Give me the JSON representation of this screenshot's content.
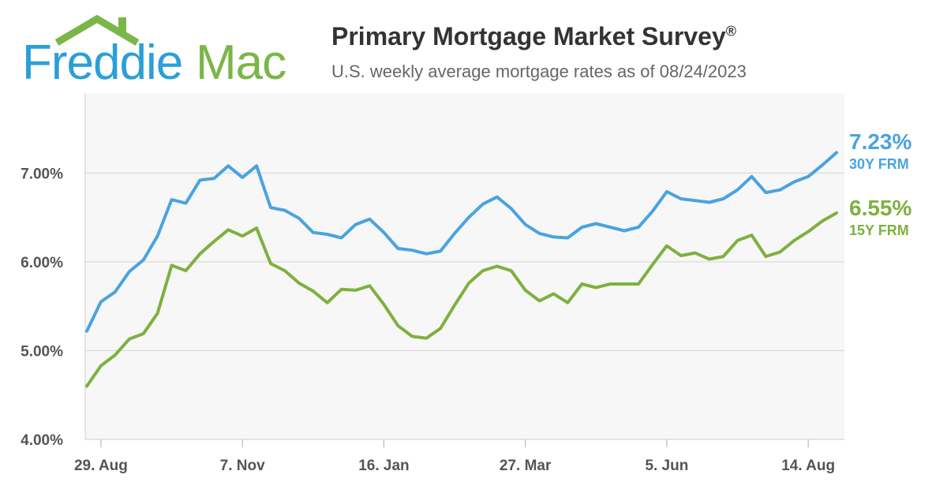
{
  "logo": {
    "word1": "Freddie",
    "word2": "Mac",
    "color1": "#2a9fd8",
    "color2": "#7ab648"
  },
  "header": {
    "title": "Primary Mortgage Market Survey",
    "title_mark": "®",
    "subtitle": "U.S. weekly average mortgage rates as of 08/24/2023"
  },
  "end_labels": {
    "frm30": {
      "value": "7.23%",
      "name": "30Y FRM",
      "color": "#4aa3df"
    },
    "frm15": {
      "value": "6.55%",
      "name": "15Y FRM",
      "color": "#7fb03f"
    }
  },
  "chart_data": {
    "type": "line",
    "title": "",
    "xlabel": "",
    "ylabel": "",
    "ylim": [
      4.0,
      7.9
    ],
    "yticks": [
      4.0,
      5.0,
      6.0,
      7.0
    ],
    "ytick_labels": [
      "4.00%",
      "5.00%",
      "6.00%",
      "7.00%"
    ],
    "xtick_labels": [
      "29. Aug",
      "7. Nov",
      "16. Jan",
      "27. Mar",
      "5. Jun",
      "14. Aug"
    ],
    "xtick_positions": [
      1,
      11,
      21,
      31,
      41,
      51
    ],
    "grid": true,
    "legend": "end-of-line labels, right",
    "series": [
      {
        "name": "30Y FRM",
        "color": "#4aa3df",
        "values": [
          5.22,
          5.55,
          5.66,
          5.89,
          6.02,
          6.29,
          6.7,
          6.66,
          6.92,
          6.94,
          7.08,
          6.95,
          7.08,
          6.61,
          6.58,
          6.49,
          6.33,
          6.31,
          6.27,
          6.42,
          6.48,
          6.33,
          6.15,
          6.13,
          6.09,
          6.12,
          6.32,
          6.5,
          6.65,
          6.73,
          6.6,
          6.42,
          6.32,
          6.28,
          6.27,
          6.39,
          6.43,
          6.39,
          6.35,
          6.39,
          6.57,
          6.79,
          6.71,
          6.69,
          6.67,
          6.71,
          6.81,
          6.96,
          6.78,
          6.81,
          6.9,
          6.96,
          7.09,
          7.23
        ]
      },
      {
        "name": "15Y FRM",
        "color": "#7fb03f",
        "values": [
          4.6,
          4.83,
          4.95,
          5.13,
          5.19,
          5.42,
          5.96,
          5.9,
          6.09,
          6.23,
          6.36,
          6.29,
          6.38,
          5.98,
          5.9,
          5.76,
          5.67,
          5.54,
          5.69,
          5.68,
          5.73,
          5.52,
          5.28,
          5.16,
          5.14,
          5.25,
          5.51,
          5.76,
          5.9,
          5.95,
          5.9,
          5.68,
          5.56,
          5.64,
          5.54,
          5.75,
          5.71,
          5.75,
          5.75,
          5.75,
          5.97,
          6.18,
          6.07,
          6.1,
          6.03,
          6.06,
          6.24,
          6.3,
          6.06,
          6.11,
          6.24,
          6.34,
          6.46,
          6.55
        ]
      }
    ]
  }
}
